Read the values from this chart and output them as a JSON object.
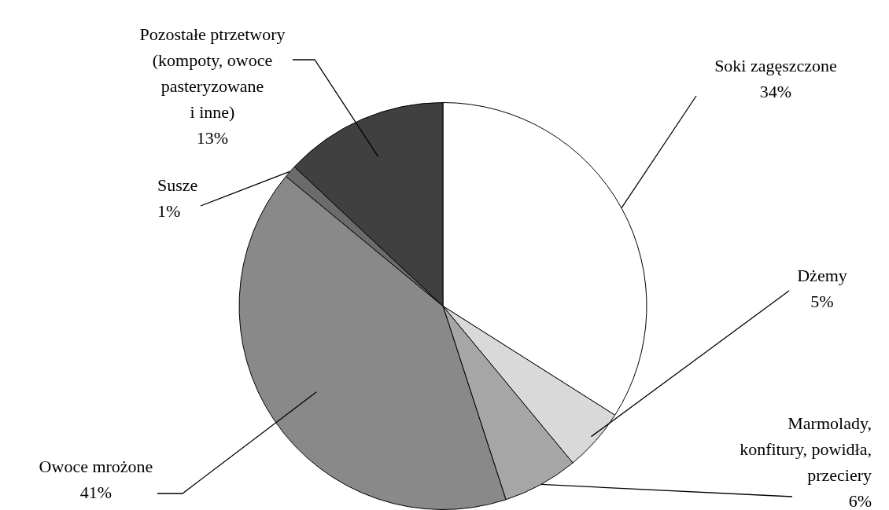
{
  "chart_data": {
    "type": "pie",
    "categories": [
      "Soki zagęszczone",
      "Dżemy",
      "Marmolady,\nkonfitury, powidła,\nprzeciery",
      "Owoce mrożone",
      "Susze",
      "Pozostałe ptrzetwory\n(kompoty, owoce\npasteryzowane\ni inne)"
    ],
    "values": [
      34,
      5,
      6,
      41,
      1,
      13
    ],
    "value_labels": [
      "34%",
      "5%",
      "6%",
      "41%",
      "1%",
      "13%"
    ],
    "colors": [
      "#ffffff",
      "#d9d9d9",
      "#a6a6a6",
      "#898989",
      "#6b6b6b",
      "#404040"
    ],
    "legend": false
  }
}
